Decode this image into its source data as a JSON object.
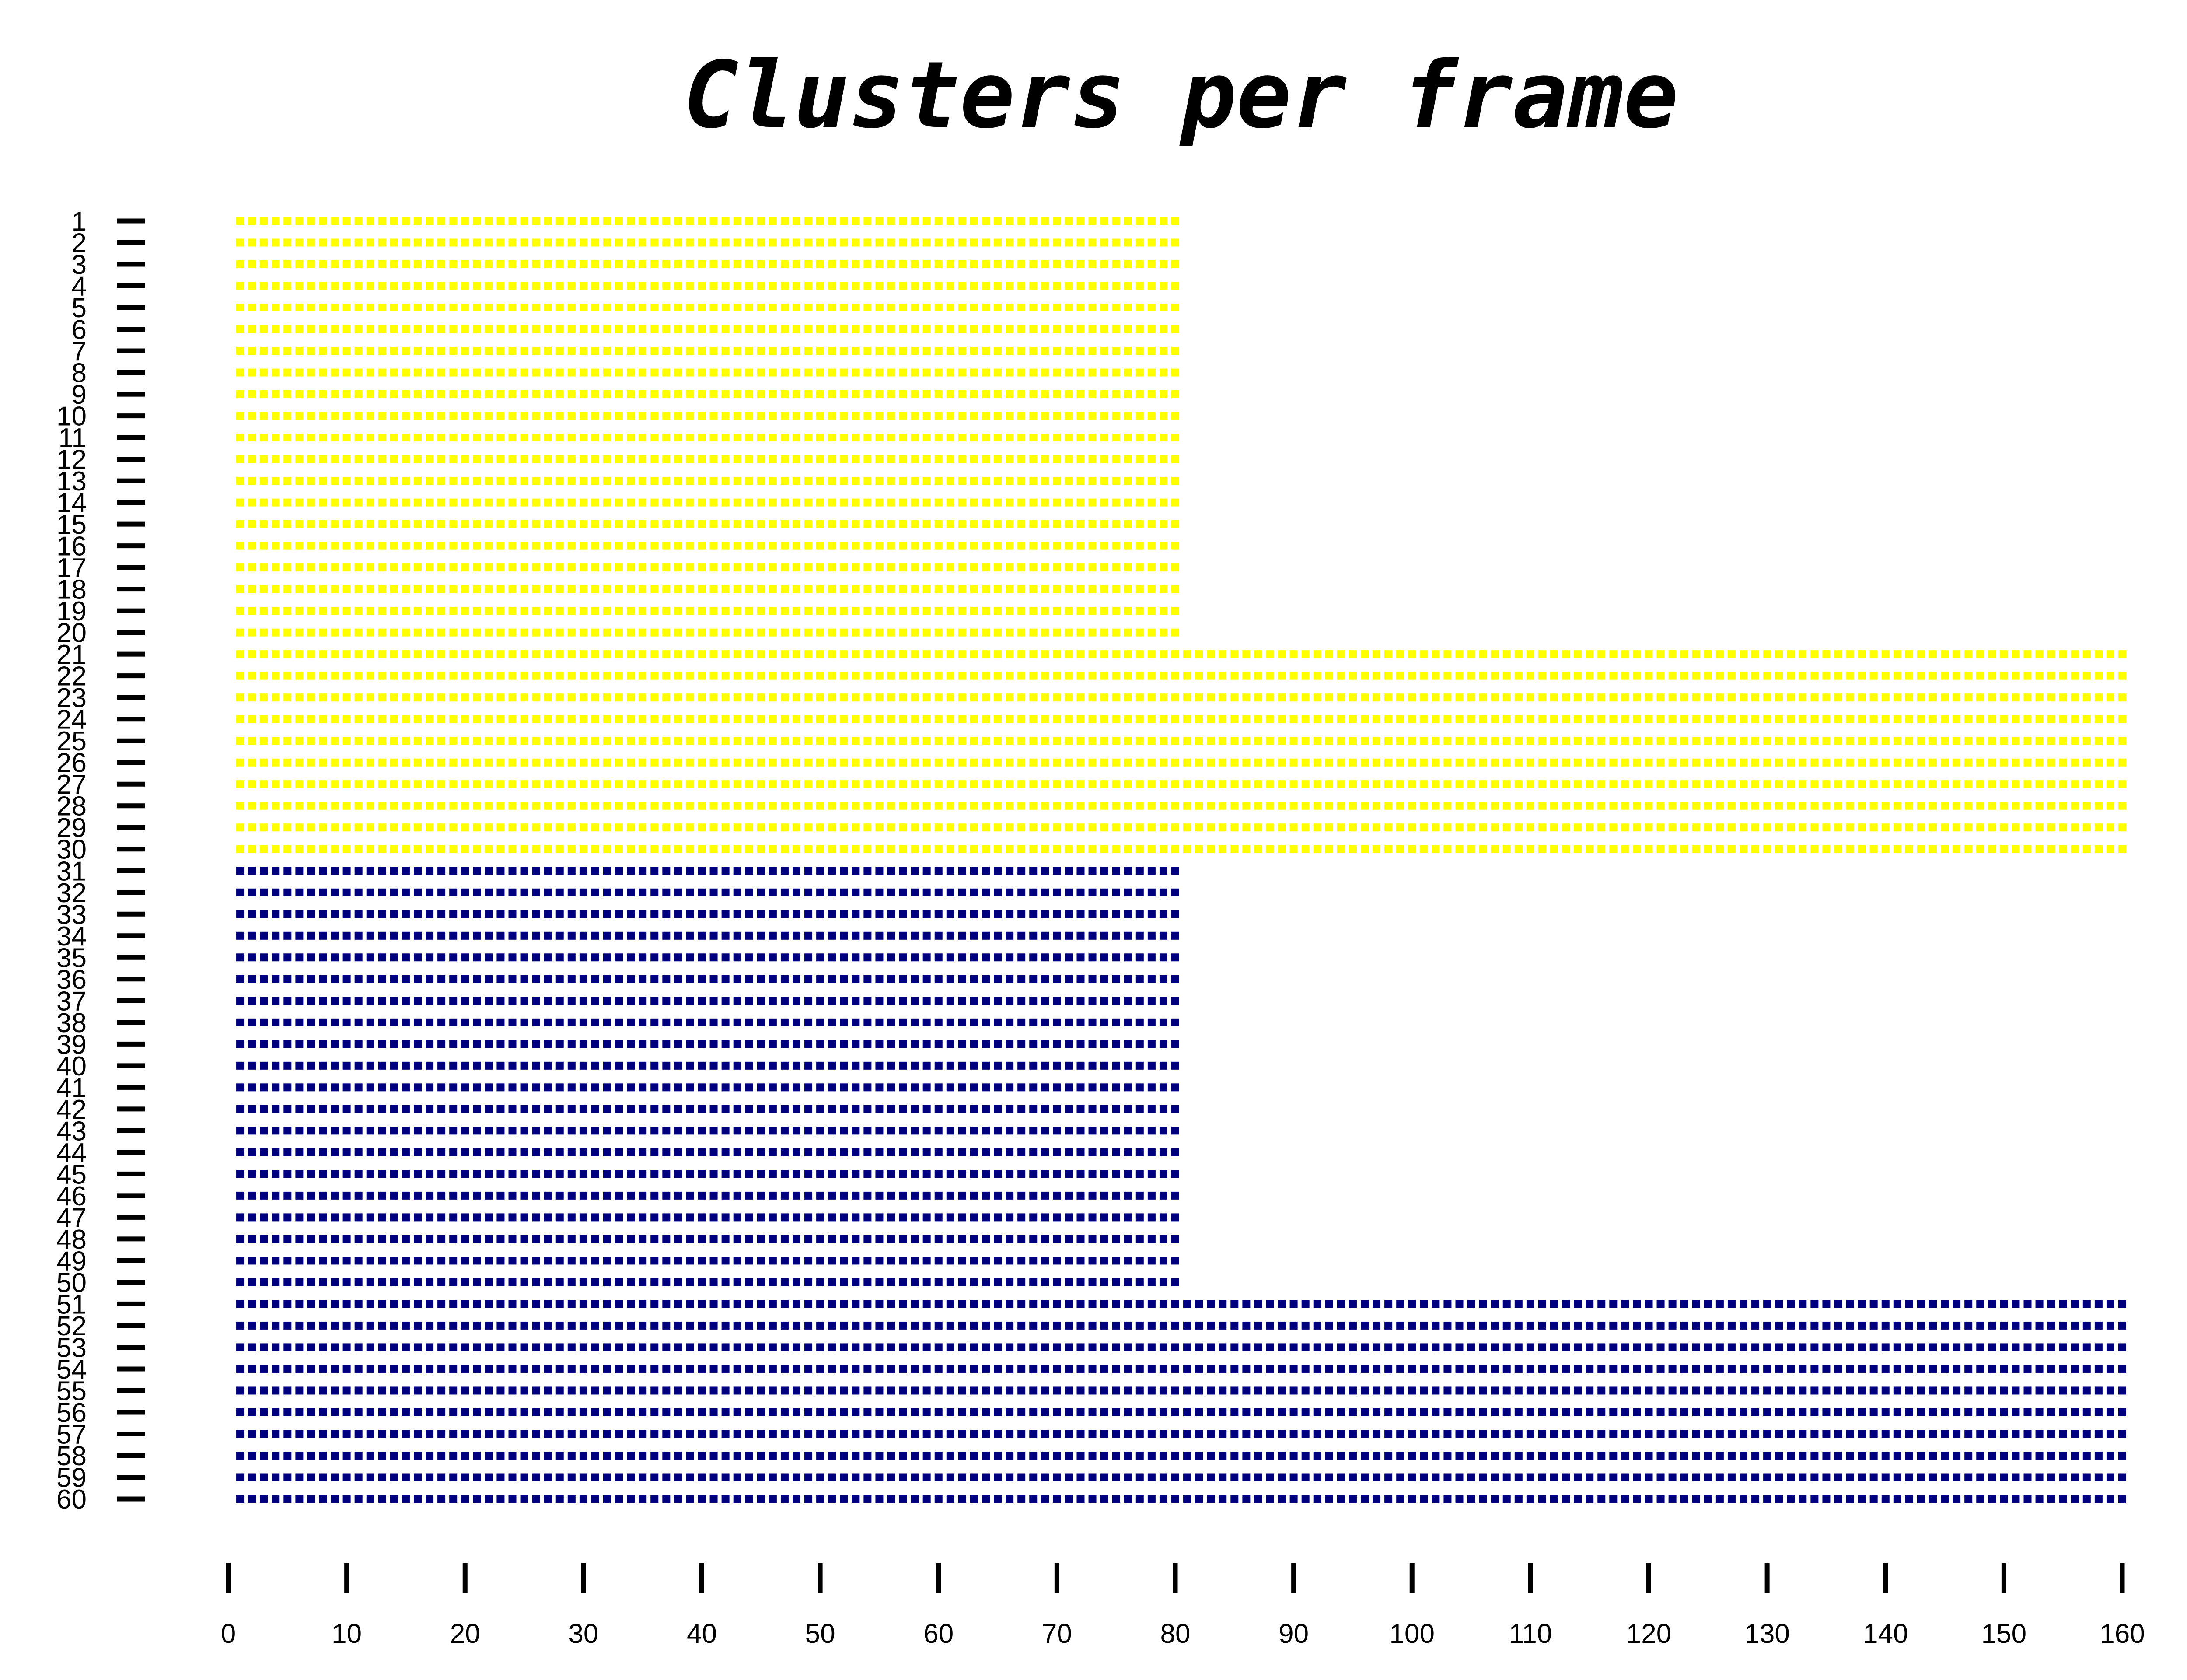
{
  "chart_data": {
    "type": "scatter",
    "title": "Clusters per frame",
    "xlabel": "",
    "ylabel": "",
    "xlim": [
      0,
      160
    ],
    "ylim": [
      1,
      60
    ],
    "y_inverted": true,
    "x_ticks": [
      0,
      10,
      20,
      30,
      40,
      50,
      60,
      70,
      80,
      90,
      100,
      110,
      120,
      130,
      140,
      150,
      160
    ],
    "y_ticks": [
      1,
      2,
      3,
      4,
      5,
      6,
      7,
      8,
      9,
      10,
      11,
      12,
      13,
      14,
      15,
      16,
      17,
      18,
      19,
      20,
      21,
      22,
      23,
      24,
      25,
      26,
      27,
      28,
      29,
      30,
      31,
      32,
      33,
      34,
      35,
      36,
      37,
      38,
      39,
      40,
      41,
      42,
      43,
      44,
      45,
      46,
      47,
      48,
      49,
      50,
      51,
      52,
      53,
      54,
      55,
      56,
      57,
      58,
      59,
      60
    ],
    "grid": false,
    "legend": "none",
    "series": [
      {
        "color": "#ffff00",
        "rows": [
          1,
          20
        ],
        "x_start": 1,
        "x_end": 80
      },
      {
        "color": "#ffff00",
        "rows": [
          21,
          30
        ],
        "x_start": 1,
        "x_end": 160
      },
      {
        "color": "#00007f",
        "rows": [
          31,
          50
        ],
        "x_start": 1,
        "x_end": 80
      },
      {
        "color": "#00007f",
        "rows": [
          51,
          60
        ],
        "x_start": 1,
        "x_end": 160
      }
    ]
  }
}
